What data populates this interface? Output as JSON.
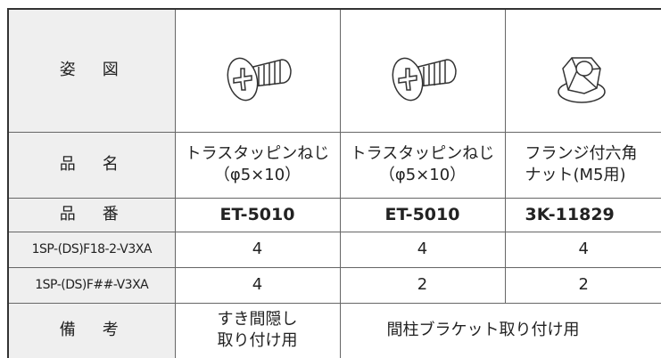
{
  "table": {
    "figure_label": "姿　図",
    "rows": [
      [
        "品　名",
        "トラスタッピンねじ\n（φ5×10）",
        "トラスタッピンねじ\n（φ5×10）",
        "フランジ付六角\nナット(M5用)"
      ],
      [
        "品　番",
        "ET-5010",
        "ET-5010",
        "3K-11829"
      ],
      [
        "1SP-(DS)F18-2-V3XA",
        "4",
        "4",
        "4"
      ],
      [
        "1SP-(DS)F##-V3XA",
        "4",
        "2",
        "2"
      ]
    ],
    "note_row": {
      "label": "備　考",
      "cells": [
        "すき間隠し\n取り付け用",
        "間柱ブラケット取り付け用"
      ]
    }
  }
}
